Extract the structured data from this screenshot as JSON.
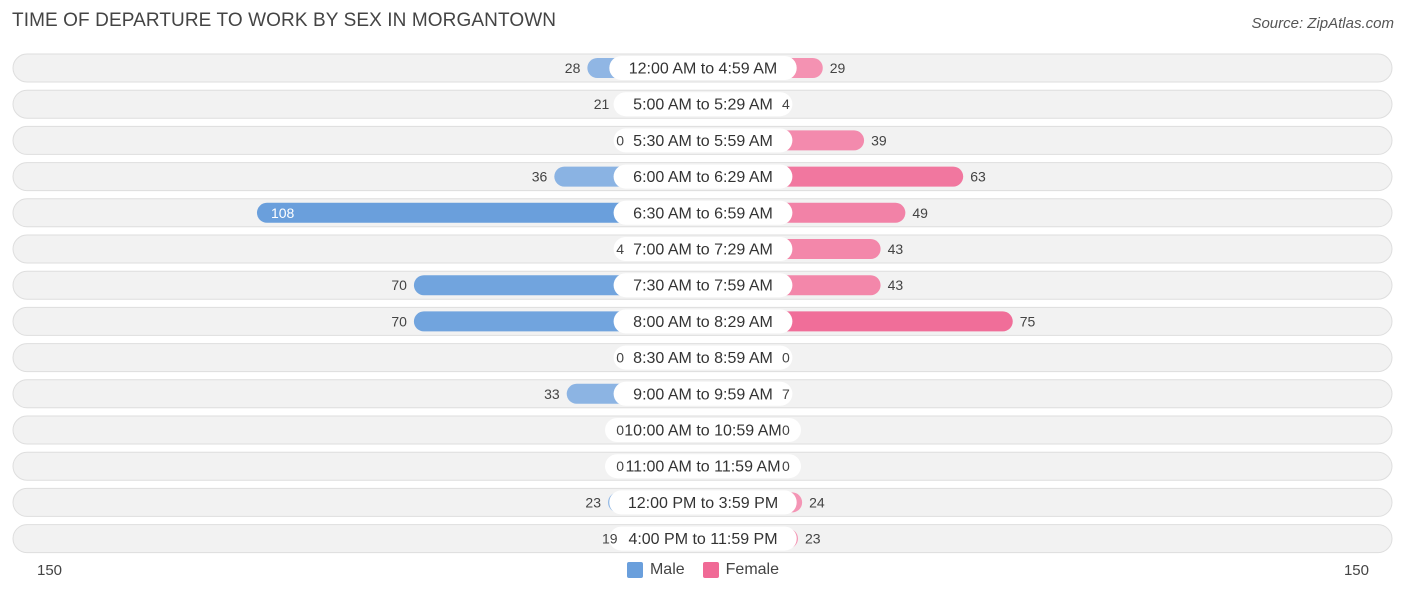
{
  "header": {
    "title": "TIME OF DEPARTURE TO WORK BY SEX IN MORGANTOWN",
    "source": "Source: ZipAtlas.com"
  },
  "axis": {
    "left_label": "150",
    "right_label": "150"
  },
  "legend": {
    "male_label": "Male",
    "female_label": "Female"
  },
  "colors": {
    "male_light": "#a4c3e8",
    "male_strong": "#6a9fdc",
    "female_light": "#f6a8c2",
    "female_strong": "#f06a96",
    "row_bg": "#f2f2f2",
    "row_border": "#dedede"
  },
  "chart_data": {
    "type": "bar",
    "title": "TIME OF DEPARTURE TO WORK BY SEX IN MORGANTOWN",
    "xlim": [
      -150,
      150
    ],
    "categories": [
      "12:00 AM to 4:59 AM",
      "5:00 AM to 5:29 AM",
      "5:30 AM to 5:59 AM",
      "6:00 AM to 6:29 AM",
      "6:30 AM to 6:59 AM",
      "7:00 AM to 7:29 AM",
      "7:30 AM to 7:59 AM",
      "8:00 AM to 8:29 AM",
      "8:30 AM to 8:59 AM",
      "9:00 AM to 9:59 AM",
      "10:00 AM to 10:59 AM",
      "11:00 AM to 11:59 AM",
      "12:00 PM to 3:59 PM",
      "4:00 PM to 11:59 PM"
    ],
    "series": [
      {
        "name": "Male",
        "values": [
          28,
          21,
          0,
          36,
          108,
          4,
          70,
          70,
          0,
          33,
          0,
          0,
          23,
          19
        ]
      },
      {
        "name": "Female",
        "values": [
          29,
          4,
          39,
          63,
          49,
          43,
          43,
          75,
          0,
          7,
          0,
          0,
          24,
          23
        ]
      }
    ],
    "legend_position": "bottom-center"
  }
}
